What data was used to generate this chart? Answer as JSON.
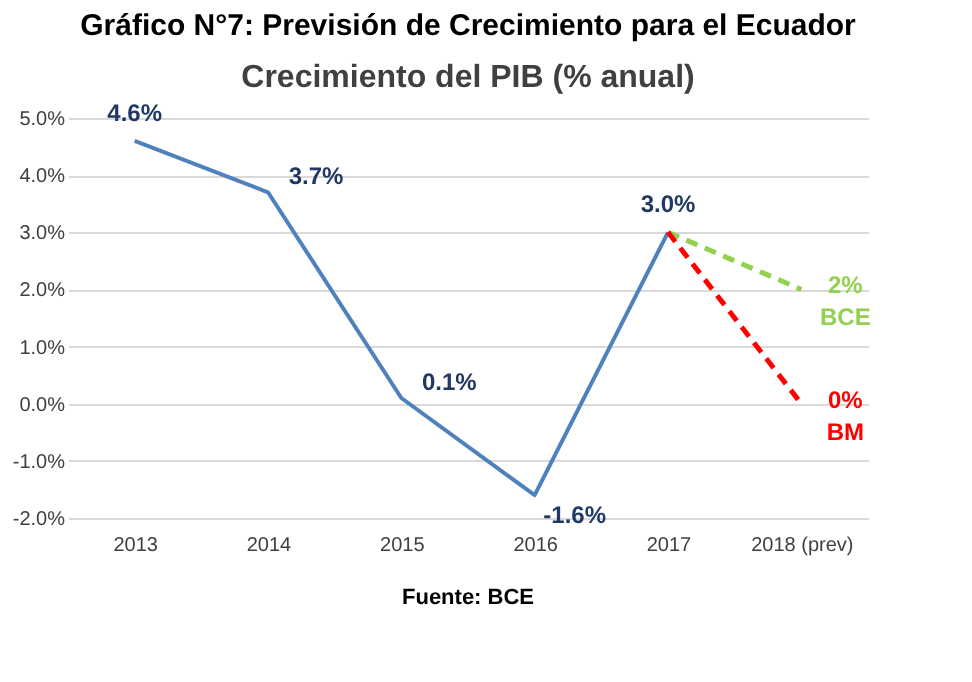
{
  "chart_data": {
    "type": "line",
    "title": "Gráfico N°7: Previsión de Crecimiento para el Ecuador",
    "subtitle": "Crecimiento del PIB (% anual)",
    "categories": [
      "2013",
      "2014",
      "2015",
      "2016",
      "2017",
      "2018 (prev)"
    ],
    "series": [
      {
        "color": "#4f81bd",
        "line_style": "solid",
        "values": [
          4.6,
          3.7,
          0.1,
          -1.6,
          3.0,
          null
        ],
        "value_labels": [
          "4.6%",
          "3.7%",
          "0.1%",
          "-1.6%",
          "3.0%",
          null
        ]
      },
      {
        "name": "BCE",
        "color": "#92d050",
        "line_style": "dashed",
        "values": [
          null,
          null,
          null,
          null,
          3.0,
          2.0
        ],
        "value_labels": [
          null,
          null,
          null,
          null,
          null,
          "2%"
        ]
      },
      {
        "name": "BM",
        "color": "#ff0000",
        "line_style": "dashed",
        "values": [
          null,
          null,
          null,
          null,
          3.0,
          0.0
        ],
        "value_labels": [
          null,
          null,
          null,
          null,
          null,
          "0%"
        ]
      }
    ],
    "ylim": [
      -2.0,
      5.0
    ],
    "yticks": [
      {
        "value": -2,
        "label": "-2.0%"
      },
      {
        "value": -1,
        "label": "-1.0%"
      },
      {
        "value": 0,
        "label": "0.0%"
      },
      {
        "value": 1,
        "label": "1.0%"
      },
      {
        "value": 2,
        "label": "2.0%"
      },
      {
        "value": 3,
        "label": "3.0%"
      },
      {
        "value": 4,
        "label": "4.0%"
      },
      {
        "value": 5,
        "label": "5.0%"
      }
    ],
    "grid": "y",
    "marker": "none",
    "annotations": [
      "Fuente: BCE"
    ]
  }
}
